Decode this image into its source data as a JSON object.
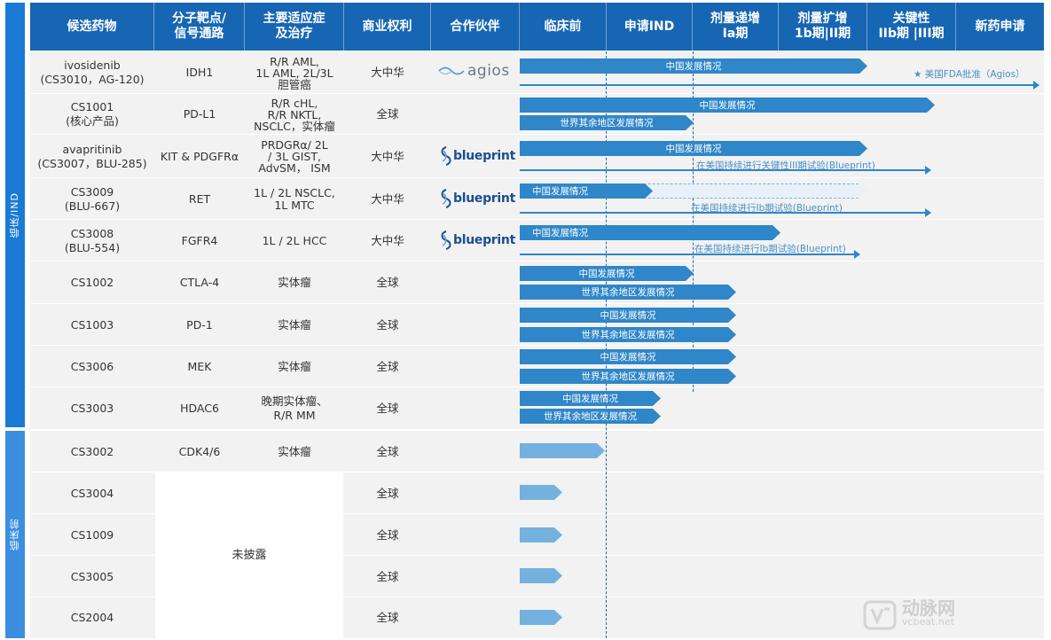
{
  "side_labels": {
    "clinical": "临床/IND",
    "preclinical": "临床前"
  },
  "header": [
    "候选药物",
    "分子靶点/\n信号通路",
    "主要适应症\n及治疗",
    "商业权利",
    "合作伙伴",
    "临床前",
    "申请IND",
    "剂量递增\nIa期",
    "剂量扩增\n1b期|II期",
    "关键性\nIIb期 |III期",
    "新药申请"
  ],
  "partner_logos": {
    "agios": "agios",
    "blueprint": "blueprint"
  },
  "labels": {
    "china": "中国发展情况",
    "row": "世界其余地区发展情况",
    "fda": "美国FDA批准（Agios）",
    "bp_pivotal": "在美国持续进行关键性III期试验(Blueprint)",
    "bp_ib": "在美国持续进行Ib期试验(Blueprint)"
  },
  "rows": [
    {
      "drug": "ivosidenib\n(CS3010，AG-120)",
      "target": "IDH1",
      "indication": "R/R AML,\n1L AML,  2L/3L\n胆管癌",
      "rights": "大中华",
      "partner": "agios"
    },
    {
      "drug": "CS1001\n(核心产品)",
      "target": "PD-L1",
      "indication": "R/R cHL,\nR/R NKTL,\nNSCLC，实体瘤",
      "rights": "全球",
      "partner": ""
    },
    {
      "drug": "avapritinib\n(CS3007，BLU-285)",
      "target": "KIT & PDGFRα",
      "indication": "PRDGRα/ 2L\n/ 3L GIST,\nAdvSM， ISM",
      "rights": "大中华",
      "partner": "blueprint"
    },
    {
      "drug": "CS3009\n(BLU-667)",
      "target": "RET",
      "indication": "1L / 2L NSCLC,\n1L MTC",
      "rights": "大中华",
      "partner": "blueprint"
    },
    {
      "drug": "CS3008\n(BLU-554)",
      "target": "FGFR4",
      "indication": "1L / 2L HCC",
      "rights": "大中华",
      "partner": "blueprint"
    },
    {
      "drug": "CS1002",
      "target": "CTLA-4",
      "indication": "实体瘤",
      "rights": "全球",
      "partner": ""
    },
    {
      "drug": "CS1003",
      "target": "PD-1",
      "indication": "实体瘤",
      "rights": "全球",
      "partner": ""
    },
    {
      "drug": "CS3006",
      "target": "MEK",
      "indication": "实体瘤",
      "rights": "全球",
      "partner": ""
    },
    {
      "drug": "CS3003",
      "target": "HDAC6",
      "indication": "晚期实体瘤、\nR/R  MM",
      "rights": "全球",
      "partner": ""
    },
    {
      "drug": "CS3002",
      "target": "CDK4/6",
      "indication": "实体瘤",
      "rights": "全球",
      "partner": ""
    },
    {
      "drug": "CS3004",
      "target": "",
      "indication": "",
      "rights": "全球",
      "partner": ""
    },
    {
      "drug": "CS1009",
      "target": "",
      "indication": "",
      "rights": "全球",
      "partner": ""
    },
    {
      "drug": "CS3005",
      "target": "",
      "indication": "",
      "rights": "全球",
      "partner": ""
    },
    {
      "drug": "CS2004",
      "target": "",
      "indication": "",
      "rights": "全球",
      "partner": ""
    }
  ],
  "undisclosed": "未披露",
  "watermark": {
    "brand": "动脉网",
    "site": "vcbeat.net"
  },
  "colors": {
    "header": "#1766b4",
    "bar": "#2f86c8",
    "bar_light": "#74b1de",
    "side": "#1a7ad6",
    "row_alt": "#f2f2f2"
  }
}
